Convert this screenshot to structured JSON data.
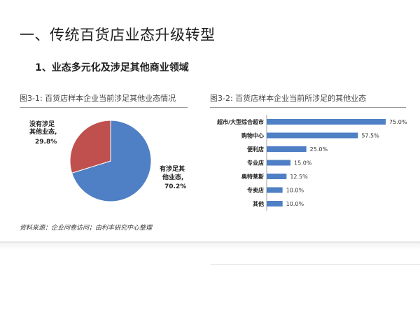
{
  "header": {
    "title": "一、传统百货店业态升级转型",
    "subtitle": "1、业态多元化及涉足其他商业领域"
  },
  "source_note": "资料来源：企业问卷访问；由利丰研究中心整理",
  "colors": {
    "pie_blue": "#4f7fc4",
    "pie_red": "#c0504d",
    "bar_blue": "#4f7fc4"
  },
  "chart_data": [
    {
      "type": "pie",
      "title": "图3-1: 百货店样本企业当前涉足其他业态情况",
      "slices": [
        {
          "label_lines": [
            "有涉足其",
            "他业态,"
          ],
          "value_text": "70.2%",
          "value": 70.2
        },
        {
          "label_lines": [
            "没有涉足",
            "其他业态,"
          ],
          "value_text": "29.8%",
          "value": 29.8
        }
      ]
    },
    {
      "type": "bar",
      "orientation": "horizontal",
      "title": "图3-2: 百货店样本企业当前所涉足的其他业态",
      "categories": [
        "超市/大型综合超市",
        "购物中心",
        "便利店",
        "专业店",
        "奥特莱斯",
        "专卖店",
        "其他"
      ],
      "values": [
        75.0,
        57.5,
        25.0,
        15.0,
        12.5,
        10.0,
        10.0
      ],
      "value_labels": [
        "75.0%",
        "57.5%",
        "25.0%",
        "15.0%",
        "12.5%",
        "10.0%",
        "10.0%"
      ],
      "xlim": [
        0,
        75
      ]
    }
  ]
}
